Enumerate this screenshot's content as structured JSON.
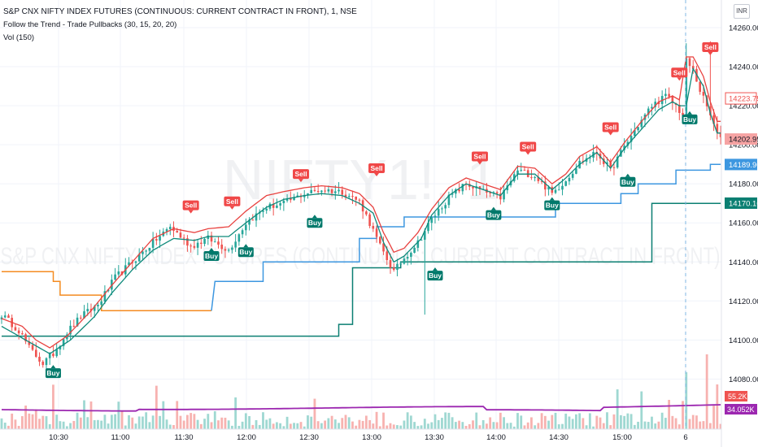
{
  "header": {
    "title": "S&P CNX NIFTY INDEX FUTURES (CONTINUOUS: CURRENT CONTRACT IN FRONT), 1, NSE",
    "indicator": "Follow the Trend - Trade Pullbacks (30, 15, 20, 20)",
    "volume": "Vol (150)",
    "currency": "INR"
  },
  "watermark": {
    "symbol": "NIFTY1!, 1",
    "description": "S&P CNX NIFTY INDEX FUTURES (CONTINUOUS: CURRENT CONTRACT IN FRONT)"
  },
  "colors": {
    "up": "#26a69a",
    "down": "#ef5350",
    "teal": "#0b7f72",
    "blue": "#3d97e0",
    "orange": "#f48b20",
    "purple": "#9c27b0",
    "buy": "#00796b",
    "sell": "#f04848",
    "grid": "#f0f3fa",
    "axis_text": "#131722"
  },
  "chart_data": {
    "type": "candlestick",
    "interval": "1 minute",
    "x_ticks": [
      "10:30",
      "11:00",
      "11:30",
      "12:00",
      "12:30",
      "13:00",
      "13:30",
      "14:00",
      "14:30",
      "15:00",
      "6"
    ],
    "y_ticks": [
      14080,
      14100,
      14120,
      14140,
      14160,
      14180,
      14200,
      14220,
      14240,
      14260
    ],
    "ylim": [
      14060,
      14270
    ],
    "price_path": [
      [
        0,
        14113
      ],
      [
        5,
        14105
      ],
      [
        8,
        14096
      ],
      [
        12,
        14088
      ],
      [
        15,
        14093
      ],
      [
        19,
        14104
      ],
      [
        23,
        14112
      ],
      [
        28,
        14118
      ],
      [
        33,
        14132
      ],
      [
        38,
        14140
      ],
      [
        44,
        14150
      ],
      [
        49,
        14158
      ],
      [
        55,
        14148
      ],
      [
        60,
        14152
      ],
      [
        66,
        14146
      ],
      [
        71,
        14160
      ],
      [
        77,
        14168
      ],
      [
        82,
        14170
      ],
      [
        88,
        14175
      ],
      [
        93,
        14177
      ],
      [
        99,
        14176
      ],
      [
        104,
        14171
      ],
      [
        107,
        14160
      ],
      [
        110,
        14148
      ],
      [
        114,
        14135
      ],
      [
        117,
        14142
      ],
      [
        121,
        14150
      ],
      [
        125,
        14162
      ],
      [
        130,
        14173
      ],
      [
        135,
        14180
      ],
      [
        140,
        14176
      ],
      [
        145,
        14173
      ],
      [
        150,
        14187
      ],
      [
        155,
        14184
      ],
      [
        160,
        14175
      ],
      [
        164,
        14182
      ],
      [
        168,
        14191
      ],
      [
        173,
        14196
      ],
      [
        177,
        14187
      ],
      [
        181,
        14199
      ],
      [
        185,
        14210
      ],
      [
        189,
        14220
      ],
      [
        193,
        14225
      ],
      [
        196,
        14220
      ],
      [
        198,
        14215
      ],
      [
        199,
        14243
      ],
      [
        201,
        14238
      ],
      [
        203,
        14228
      ],
      [
        206,
        14215
      ],
      [
        208,
        14205
      ]
    ],
    "band_sell": [
      [
        0,
        14111
      ],
      [
        6,
        14107
      ],
      [
        10,
        14100
      ],
      [
        14,
        14096
      ],
      [
        19,
        14102
      ],
      [
        26,
        14115
      ],
      [
        32,
        14128
      ],
      [
        38,
        14140
      ],
      [
        44,
        14152
      ],
      [
        50,
        14157
      ],
      [
        56,
        14155
      ],
      [
        60,
        14157
      ],
      [
        66,
        14158
      ],
      [
        71,
        14166
      ],
      [
        77,
        14174
      ],
      [
        82,
        14176
      ],
      [
        88,
        14178
      ],
      [
        93,
        14179
      ],
      [
        99,
        14178
      ],
      [
        104,
        14175
      ],
      [
        108,
        14168
      ],
      [
        111,
        14155
      ],
      [
        114,
        14145
      ],
      [
        117,
        14147
      ],
      [
        121,
        14155
      ],
      [
        125,
        14167
      ],
      [
        130,
        14178
      ],
      [
        135,
        14183
      ],
      [
        140,
        14180
      ],
      [
        145,
        14177
      ],
      [
        150,
        14189
      ],
      [
        155,
        14188
      ],
      [
        160,
        14180
      ],
      [
        164,
        14185
      ],
      [
        168,
        14194
      ],
      [
        173,
        14199
      ],
      [
        177,
        14191
      ],
      [
        181,
        14201
      ],
      [
        186,
        14212
      ],
      [
        191,
        14222
      ],
      [
        195,
        14225
      ],
      [
        197,
        14223
      ],
      [
        199,
        14245
      ],
      [
        201,
        14245
      ],
      [
        204,
        14235
      ],
      [
        206,
        14222
      ],
      [
        208,
        14212
      ]
    ],
    "band_buy": [
      [
        0,
        14107
      ],
      [
        8,
        14099
      ],
      [
        14,
        14093
      ],
      [
        20,
        14100
      ],
      [
        27,
        14112
      ],
      [
        32,
        14124
      ],
      [
        38,
        14136
      ],
      [
        44,
        14146
      ],
      [
        50,
        14152
      ],
      [
        56,
        14151
      ],
      [
        60,
        14153
      ],
      [
        66,
        14153
      ],
      [
        71,
        14160
      ],
      [
        77,
        14168
      ],
      [
        82,
        14172
      ],
      [
        88,
        14174
      ],
      [
        93,
        14175
      ],
      [
        99,
        14174
      ],
      [
        104,
        14170
      ],
      [
        108,
        14165
      ],
      [
        111,
        14150
      ],
      [
        114,
        14140
      ],
      [
        117,
        14143
      ],
      [
        122,
        14152
      ],
      [
        125,
        14164
      ],
      [
        130,
        14174
      ],
      [
        135,
        14180
      ],
      [
        140,
        14177
      ],
      [
        145,
        14174
      ],
      [
        150,
        14185
      ],
      [
        155,
        14185
      ],
      [
        160,
        14177
      ],
      [
        164,
        14183
      ],
      [
        168,
        14190
      ],
      [
        173,
        14196
      ],
      [
        177,
        14188
      ],
      [
        181,
        14198
      ],
      [
        186,
        14208
      ],
      [
        191,
        14218
      ],
      [
        195,
        14222
      ],
      [
        197,
        14220
      ],
      [
        199,
        14220
      ],
      [
        201,
        14239
      ],
      [
        204,
        14230
      ],
      [
        206,
        14216
      ],
      [
        208,
        14206
      ]
    ],
    "steps_orange": [
      [
        0,
        14135
      ],
      [
        15,
        14135
      ],
      [
        15,
        14130
      ],
      [
        17,
        14130
      ],
      [
        17,
        14123
      ],
      [
        29,
        14123
      ],
      [
        29,
        14115
      ],
      [
        61,
        14115
      ]
    ],
    "steps_teal": [
      [
        0,
        14102
      ],
      [
        98,
        14102
      ],
      [
        98,
        14108
      ],
      [
        102,
        14108
      ],
      [
        102,
        14137
      ],
      [
        116,
        14137
      ],
      [
        116,
        14140
      ],
      [
        189,
        14140
      ],
      [
        189,
        14170
      ],
      [
        209,
        14170
      ]
    ],
    "steps_blue": [
      [
        61,
        14115
      ],
      [
        62,
        14130
      ],
      [
        76,
        14130
      ],
      [
        76,
        14140
      ],
      [
        104,
        14140
      ],
      [
        104,
        14152
      ],
      [
        109,
        14152
      ],
      [
        109,
        14158
      ],
      [
        117,
        14158
      ],
      [
        117,
        14163
      ],
      [
        161,
        14163
      ],
      [
        161,
        14170
      ],
      [
        180,
        14170
      ],
      [
        180,
        14175
      ],
      [
        185,
        14175
      ],
      [
        185,
        14180
      ],
      [
        196,
        14180
      ],
      [
        196,
        14187
      ],
      [
        206,
        14187
      ],
      [
        206,
        14190
      ],
      [
        209,
        14190
      ]
    ],
    "signals": [
      {
        "label": "Sell",
        "bar": 55,
        "price": 14164
      },
      {
        "label": "Sell",
        "bar": 67,
        "price": 14166
      },
      {
        "label": "Sell",
        "bar": 87,
        "price": 14180
      },
      {
        "label": "Sell",
        "bar": 109,
        "price": 14183
      },
      {
        "label": "Sell",
        "bar": 139,
        "price": 14189
      },
      {
        "label": "Sell",
        "bar": 153,
        "price": 14194
      },
      {
        "label": "Sell",
        "bar": 177,
        "price": 14204
      },
      {
        "label": "Sell",
        "bar": 197,
        "price": 14232
      },
      {
        "label": "Sell",
        "bar": 206,
        "price": 14245
      },
      {
        "label": "Buy",
        "bar": 15,
        "price": 14088
      },
      {
        "label": "Buy",
        "bar": 61,
        "price": 14148
      },
      {
        "label": "Buy",
        "bar": 71,
        "price": 14150
      },
      {
        "label": "Buy",
        "bar": 91,
        "price": 14165
      },
      {
        "label": "Buy",
        "bar": 126,
        "price": 14138
      },
      {
        "label": "Buy",
        "bar": 143,
        "price": 14169
      },
      {
        "label": "Buy",
        "bar": 160,
        "price": 14174
      },
      {
        "label": "Buy",
        "bar": 182,
        "price": 14186
      },
      {
        "label": "Buy",
        "bar": 200,
        "price": 14218
      }
    ],
    "volume_ma_last": "34.052K",
    "volume_last": "55.2K",
    "price_labels": [
      {
        "text": "14223.75",
        "price": 14223.75,
        "color": "#ef5350",
        "style": "outline"
      },
      {
        "text": "14202.95",
        "price": 14202.95,
        "color": "#f6a3a3",
        "style": "fill",
        "textColor": "#131722"
      },
      {
        "text": "14189.90",
        "price": 14189.9,
        "color": "#3d97e0",
        "style": "fill",
        "textColor": "#ffffff"
      },
      {
        "text": "14170.10",
        "price": 14170.1,
        "color": "#0b7f72",
        "style": "fill",
        "textColor": "#ffffff"
      }
    ]
  }
}
